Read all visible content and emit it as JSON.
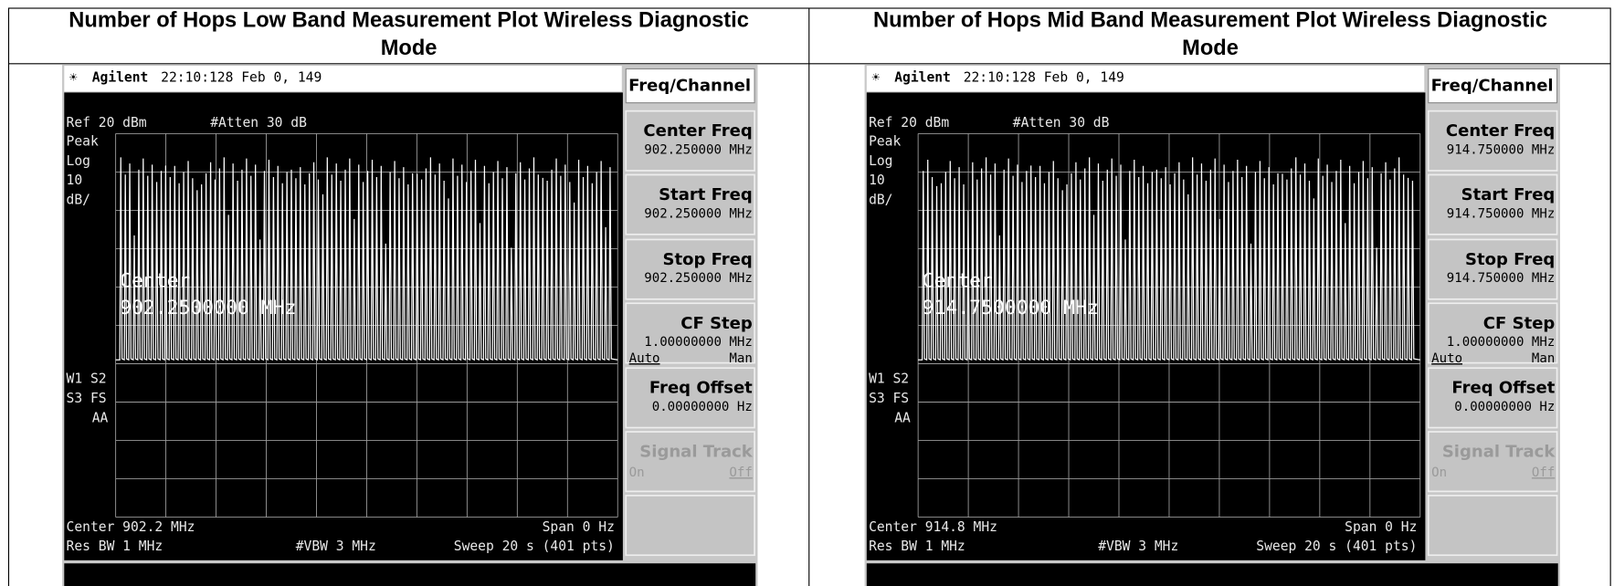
{
  "table": {
    "headers": [
      "Number of Hops Low Band Measurement Plot Wireless Diagnostic Mode",
      "Number of Hops Mid Band Measurement Plot Wireless Diagnostic Mode"
    ],
    "panels": [
      {
        "brand": "Agilent",
        "timestamp": "22:10:128  Feb 0, 149",
        "ref_level": "Ref 20 dBm",
        "attenuation": "#Atten 30 dB",
        "scale_labels": [
          "Peak",
          "Log",
          "10",
          "dB/"
        ],
        "status_labels": [
          "W1  S2",
          "S3  FS",
          "AA"
        ],
        "marker_label": "Center",
        "marker_value": "902.2500000 MHz",
        "footer": {
          "center": "Center 902.2 MHz",
          "span": "Span 0 Hz",
          "res_bw": "Res BW 1 MHz",
          "vbw": "#VBW 3 MHz",
          "sweep": "Sweep 20 s (401 pts)"
        },
        "menu": {
          "title": "Freq/Channel",
          "buttons": [
            {
              "label": "Center Freq",
              "value": "902.250000 MHz"
            },
            {
              "label": "Start Freq",
              "value": "902.250000 MHz"
            },
            {
              "label": "Stop Freq",
              "value": "902.250000 MHz"
            },
            {
              "label": "CF Step",
              "value": "1.00000000 MHz",
              "options": [
                "Auto",
                "Man"
              ]
            },
            {
              "label": "Freq Offset",
              "value": "0.00000000  Hz"
            },
            {
              "label": "Signal Track",
              "options": [
                "On",
                "Off"
              ]
            }
          ]
        }
      },
      {
        "brand": "Agilent",
        "timestamp": "22:10:128  Feb 0, 149",
        "ref_level": "Ref 20 dBm",
        "attenuation": "#Atten 30 dB",
        "scale_labels": [
          "Peak",
          "Log",
          "10",
          "dB/"
        ],
        "status_labels": [
          "W1  S2",
          "S3  FS",
          "AA"
        ],
        "marker_label": "Center",
        "marker_value": "914.7500000 MHz",
        "footer": {
          "center": "Center 914.8 MHz",
          "span": "Span 0 Hz",
          "res_bw": "Res BW 1 MHz",
          "vbw": "#VBW 3 MHz",
          "sweep": "Sweep 20 s (401 pts)"
        },
        "menu": {
          "title": "Freq/Channel",
          "buttons": [
            {
              "label": "Center Freq",
              "value": "914.750000 MHz"
            },
            {
              "label": "Start Freq",
              "value": "914.750000 MHz"
            },
            {
              "label": "Stop Freq",
              "value": "914.750000 MHz"
            },
            {
              "label": "CF Step",
              "value": "1.00000000 MHz",
              "options": [
                "Auto",
                "Man"
              ]
            },
            {
              "label": "Freq Offset",
              "value": "0.00000000  Hz"
            },
            {
              "label": "Signal Track",
              "options": [
                "On",
                "Off"
              ]
            }
          ]
        }
      }
    ]
  }
}
